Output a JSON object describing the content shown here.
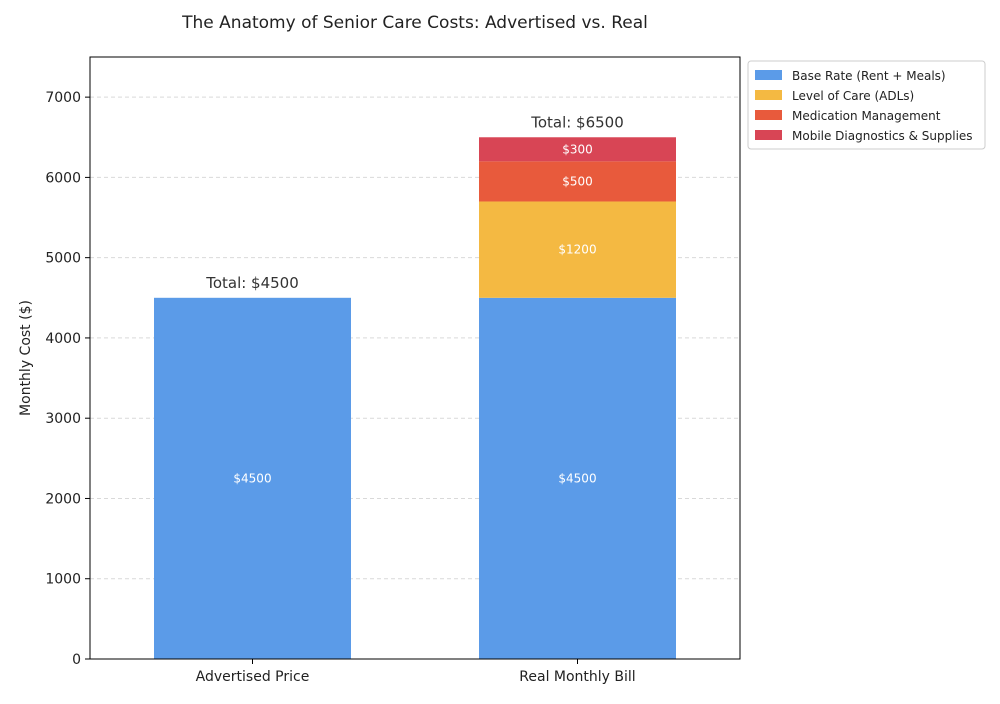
{
  "chart_data": {
    "type": "bar",
    "stacked": true,
    "title": "The Anatomy of Senior Care Costs: Advertised vs. Real",
    "xlabel": "",
    "ylabel": "Monthly Cost ($)",
    "categories": [
      "Advertised Price",
      "Real Monthly Bill"
    ],
    "series": [
      {
        "name": "Base Rate (Rent + Meals)",
        "color": "#5b9be8",
        "values": [
          4500,
          4500
        ]
      },
      {
        "name": "Level of Care (ADLs)",
        "color": "#f4b942",
        "values": [
          0,
          1200
        ]
      },
      {
        "name": "Medication Management",
        "color": "#e85a3c",
        "values": [
          0,
          500
        ]
      },
      {
        "name": "Mobile Diagnostics & Supplies",
        "color": "#d84555",
        "values": [
          0,
          300
        ]
      }
    ],
    "segment_labels": [
      [
        "$4500",
        null,
        null,
        null
      ],
      [
        "$4500",
        "$1200",
        "$500",
        "$300"
      ]
    ],
    "totals": [
      "Total: $4500",
      "Total: $6500"
    ],
    "ylim": [
      0,
      7500
    ],
    "yticks": [
      0,
      1000,
      2000,
      3000,
      4000,
      5000,
      6000,
      7000
    ],
    "ytick_labels": [
      "0",
      "1000",
      "2000",
      "3000",
      "4000",
      "5000",
      "6000",
      "7000"
    ],
    "grid": true,
    "legend_position": "outside-top-right"
  }
}
